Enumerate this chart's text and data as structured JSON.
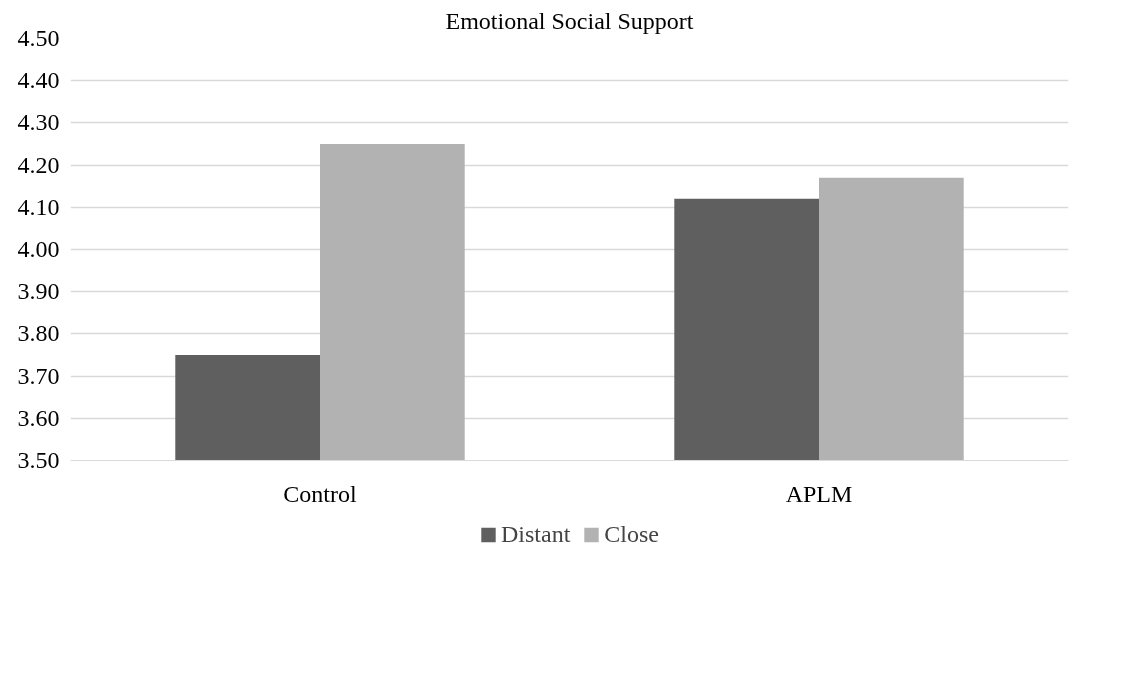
{
  "chart_data": {
    "type": "bar",
    "title": "Emotional Social Support",
    "categories": [
      "Control",
      "APLM"
    ],
    "series": [
      {
        "name": "Distant",
        "color": "#5f5f5f",
        "values": [
          3.75,
          4.12
        ]
      },
      {
        "name": "Close",
        "color": "#b2b2b2",
        "values": [
          4.25,
          4.17
        ]
      }
    ],
    "ylim": [
      3.5,
      4.5
    ],
    "yticks": [
      {
        "value": 3.5,
        "label": "3.50"
      },
      {
        "value": 3.6,
        "label": "3.60"
      },
      {
        "value": 3.7,
        "label": "3.70"
      },
      {
        "value": 3.8,
        "label": "3.80"
      },
      {
        "value": 3.9,
        "label": "3.90"
      },
      {
        "value": 4.0,
        "label": "4.00"
      },
      {
        "value": 4.1,
        "label": "4.10"
      },
      {
        "value": 4.2,
        "label": "4.20"
      },
      {
        "value": 4.3,
        "label": "4.30"
      },
      {
        "value": 4.4,
        "label": "4.40"
      },
      {
        "value": 4.5,
        "label": "4.50"
      }
    ],
    "grid": "y",
    "legend": "bottom"
  }
}
